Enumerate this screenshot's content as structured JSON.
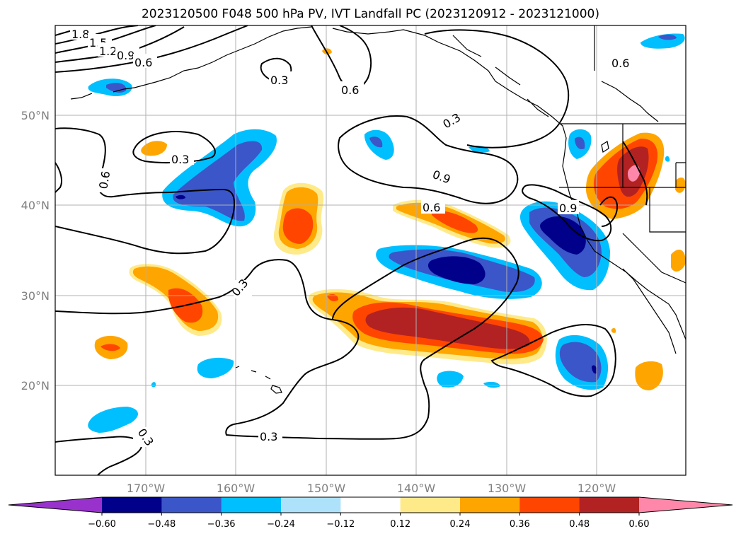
{
  "title": "2023120500 F048 500 hPa PV, IVT Landfall PC (2023120912 - 2023121000)",
  "lat_labels": [
    "50°N",
    "40°N",
    "30°N",
    "20°N"
  ],
  "lon_labels": [
    "170°W",
    "160°W",
    "150°W",
    "140°W",
    "130°W",
    "120°W"
  ],
  "contour_labels": [
    "1.8",
    "1.5",
    "1.2",
    "0.9",
    "0.6",
    "0.3",
    "0.6",
    "0.3",
    "0.6",
    "0.3",
    "0.9",
    "0.6",
    "0.3",
    "0.3",
    "0.3",
    "0.6",
    "0.9"
  ],
  "colorbar": {
    "ticks": [
      "−0.60",
      "−0.48",
      "−0.36",
      "−0.24",
      "−0.12",
      "0.12",
      "0.24",
      "0.36",
      "0.48",
      "0.60"
    ],
    "colors": [
      "#9932cc",
      "#00008b",
      "#3a56c9",
      "#00bfff",
      "#ade2fa",
      "#ffffff",
      "#ffea8a",
      "#ffa500",
      "#ff4500",
      "#b22222",
      "#ff88aa"
    ]
  }
}
